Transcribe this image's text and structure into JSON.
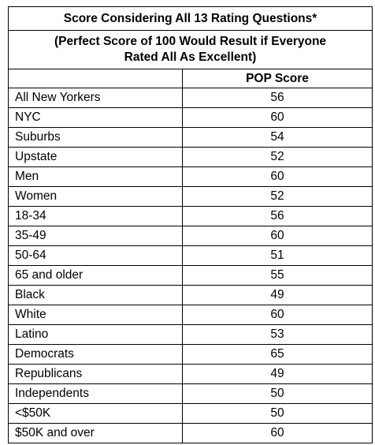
{
  "table": {
    "title": "Score Considering All 13 Rating Questions*",
    "subtitle_line1": "(Perfect Score of 100 Would Result if Everyone",
    "subtitle_line2": "Rated All As Excellent)",
    "column_header": "POP Score",
    "rows": [
      {
        "group": "All New Yorkers",
        "score": "56"
      },
      {
        "group": "NYC",
        "score": "60"
      },
      {
        "group": "Suburbs",
        "score": "54"
      },
      {
        "group": "Upstate",
        "score": "52"
      },
      {
        "group": "Men",
        "score": "60"
      },
      {
        "group": "Women",
        "score": "52"
      },
      {
        "group": "18-34",
        "score": "56"
      },
      {
        "group": "35-49",
        "score": "60"
      },
      {
        "group": "50-64",
        "score": "51"
      },
      {
        "group": "65 and older",
        "score": "55"
      },
      {
        "group": "Black",
        "score": "49"
      },
      {
        "group": "White",
        "score": "60"
      },
      {
        "group": "Latino",
        "score": "53"
      },
      {
        "group": "Democrats",
        "score": "65"
      },
      {
        "group": "Republicans",
        "score": "49"
      },
      {
        "group": "Independents",
        "score": "50"
      },
      {
        "group": "<$50K",
        "score": "50"
      },
      {
        "group": "$50K and over",
        "score": "60"
      }
    ]
  }
}
